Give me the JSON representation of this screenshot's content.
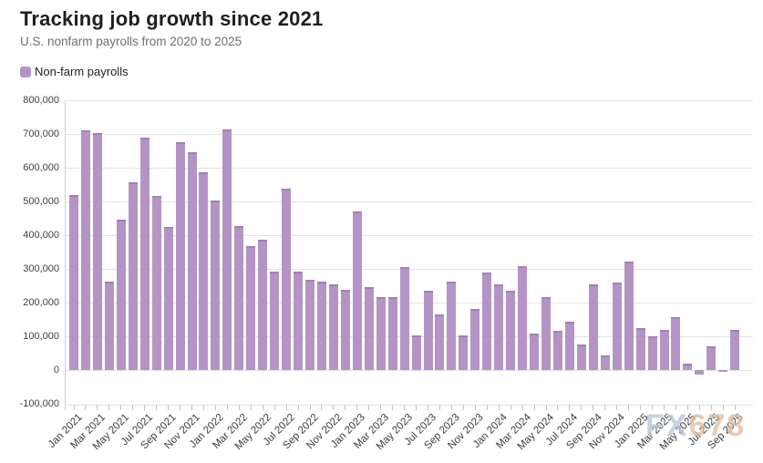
{
  "header": {
    "title": "Tracking job growth since 2021",
    "subtitle": "U.S. nonfarm payrolls from 2020 to 2025"
  },
  "legend": {
    "label": "Non-farm payrolls",
    "swatch_color": "#b494c5"
  },
  "watermark": {
    "part1": "FX",
    "part2": "678"
  },
  "colors": {
    "bar_fill": "#b494c5",
    "bar_cap": "#a181b3",
    "gridline": "#e4e4e4",
    "axis_line": "#d0d0d0",
    "tick": "#c4c4c4",
    "axis_text": "#3d3d3d",
    "title_text": "#1f1f1f",
    "subtitle_text": "#6f6f6f",
    "watermark_blue": "#b5c2d8",
    "watermark_tan": "#debb9e"
  },
  "chart_data": {
    "type": "bar",
    "title": "Tracking job growth since 2021",
    "subtitle": "U.S. nonfarm payrolls from 2020 to 2025",
    "series_name": "Non-farm payrolls",
    "grid": "horizontal",
    "legend_position": "top-left",
    "y_axis": {
      "min": -100000,
      "max": 800000,
      "tick_step": 100000,
      "tick_labels": [
        "800,000",
        "700,000",
        "600,000",
        "500,000",
        "400,000",
        "300,000",
        "200,000",
        "100,000",
        "0",
        "-100,000"
      ]
    },
    "x_tick_labels": [
      "Jan 2021",
      "Mar 2021",
      "May 2021",
      "Jul 2021",
      "Sep 2021",
      "Nov 2021",
      "Jan 2022",
      "Mar 2022",
      "May 2022",
      "Jul 2022",
      "Sep 2022",
      "Nov 2022",
      "Jan 2023",
      "Mar 2023",
      "May 2023",
      "Jul 2023",
      "Sep 2023",
      "Nov 2023",
      "Jan 2024",
      "Mar 2024",
      "May 2024",
      "Jul 2024",
      "Sep 2024",
      "Nov 2024",
      "Jan 2025",
      "Mar 2025",
      "May 2025",
      "Jul 2025",
      "Sep 2025"
    ],
    "categories": [
      "Jan 2021",
      "Feb 2021",
      "Mar 2021",
      "Apr 2021",
      "May 2021",
      "Jun 2021",
      "Jul 2021",
      "Aug 2021",
      "Sep 2021",
      "Oct 2021",
      "Nov 2021",
      "Dec 2021",
      "Jan 2022",
      "Feb 2022",
      "Mar 2022",
      "Apr 2022",
      "May 2022",
      "Jun 2022",
      "Jul 2022",
      "Aug 2022",
      "Sep 2022",
      "Oct 2022",
      "Nov 2022",
      "Dec 2022",
      "Jan 2023",
      "Feb 2023",
      "Mar 2023",
      "Apr 2023",
      "May 2023",
      "Jun 2023",
      "Jul 2023",
      "Aug 2023",
      "Sep 2023",
      "Oct 2023",
      "Nov 2023",
      "Dec 2023",
      "Jan 2024",
      "Feb 2024",
      "Mar 2024",
      "Apr 2024",
      "May 2024",
      "Jun 2024",
      "Jul 2024",
      "Aug 2024",
      "Sep 2024",
      "Oct 2024",
      "Nov 2024",
      "Dec 2024",
      "Jan 2025",
      "Feb 2025",
      "Mar 2025",
      "Apr 2025",
      "May 2025",
      "Jun 2025",
      "Jul 2025",
      "Aug 2025",
      "Sep 2025"
    ],
    "values": [
      520000,
      710000,
      704000,
      263000,
      447000,
      557000,
      689000,
      517000,
      424000,
      677000,
      647000,
      588000,
      504000,
      714000,
      428000,
      368000,
      386000,
      293000,
      537000,
      292000,
      269000,
      263000,
      256000,
      239000,
      472000,
      248000,
      217000,
      217000,
      306000,
      105000,
      236000,
      165000,
      262000,
      105000,
      182000,
      290000,
      256000,
      236000,
      310000,
      108000,
      216000,
      118000,
      144000,
      78000,
      255000,
      44000,
      261000,
      323000,
      125000,
      102000,
      120000,
      158000,
      19000,
      -13000,
      72000,
      -4000,
      119000
    ]
  }
}
